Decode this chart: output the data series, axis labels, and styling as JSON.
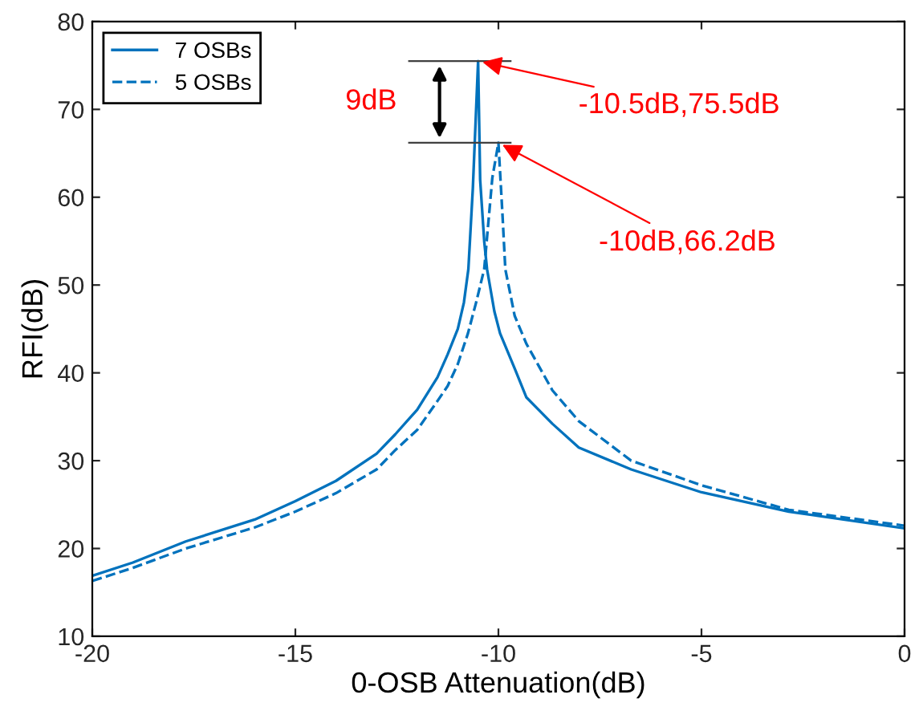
{
  "chart_data": {
    "type": "line",
    "xlabel": "0-OSB Attenuation(dB)",
    "ylabel": "RFI(dB)",
    "xlim": [
      -20,
      0
    ],
    "ylim": [
      10,
      80
    ],
    "xticks": [
      -20,
      -15,
      -10,
      -5,
      0
    ],
    "yticks": [
      10,
      20,
      30,
      40,
      50,
      60,
      70,
      80
    ],
    "grid": false,
    "legend": "top left",
    "marker": "none",
    "series": [
      {
        "name": "7 OSBs",
        "color": "#0072bd",
        "line_style": "solid",
        "x": [
          -20,
          -19,
          -17.7,
          -16,
          -15,
          -14,
          -13,
          -12.54,
          -12,
          -11.5,
          -11.25,
          -11,
          -10.85,
          -10.74,
          -10.63,
          -10.5,
          -10.45,
          -10.35,
          -10.28,
          -10.1,
          -9.96,
          -9.6,
          -9.31,
          -8.67,
          -8.02,
          -6.73,
          -5,
          -2.85,
          0
        ],
        "values": [
          16.9,
          18.4,
          20.8,
          23.3,
          25.4,
          27.7,
          30.8,
          33.0,
          35.8,
          39.5,
          42.1,
          45.0,
          48.0,
          51.8,
          61.0,
          75.5,
          62.0,
          55.0,
          51.8,
          47.0,
          44.5,
          40.5,
          37.2,
          34.2,
          31.5,
          29.0,
          26.4,
          24.2,
          22.3
        ]
      },
      {
        "name": "5 OSBs",
        "color": "#0072bd",
        "line_style": "dashed",
        "x": [
          -20,
          -19,
          -17.7,
          -16,
          -15,
          -14,
          -13,
          -12.54,
          -12,
          -11.5,
          -11.25,
          -11,
          -10.75,
          -10.55,
          -10.35,
          -10.15,
          -10,
          -9.9,
          -9.83,
          -9.6,
          -9.31,
          -8.67,
          -8.02,
          -6.73,
          -5,
          -2.85,
          0
        ],
        "values": [
          16.3,
          17.8,
          20.0,
          22.4,
          24.2,
          26.3,
          29.0,
          31.2,
          33.5,
          36.8,
          38.5,
          41.0,
          44.5,
          48.0,
          51.8,
          62.2,
          66.2,
          58.0,
          51.8,
          46.5,
          43.3,
          38.0,
          34.5,
          30.0,
          27.2,
          24.4,
          22.6
        ]
      }
    ],
    "annotations": [
      {
        "text": "-10.5dB,75.5dB",
        "x": -10.5,
        "y": 75.5
      },
      {
        "text": "-10dB,66.2dB",
        "x": -10,
        "y": 66.2
      },
      "9dB"
    ]
  }
}
